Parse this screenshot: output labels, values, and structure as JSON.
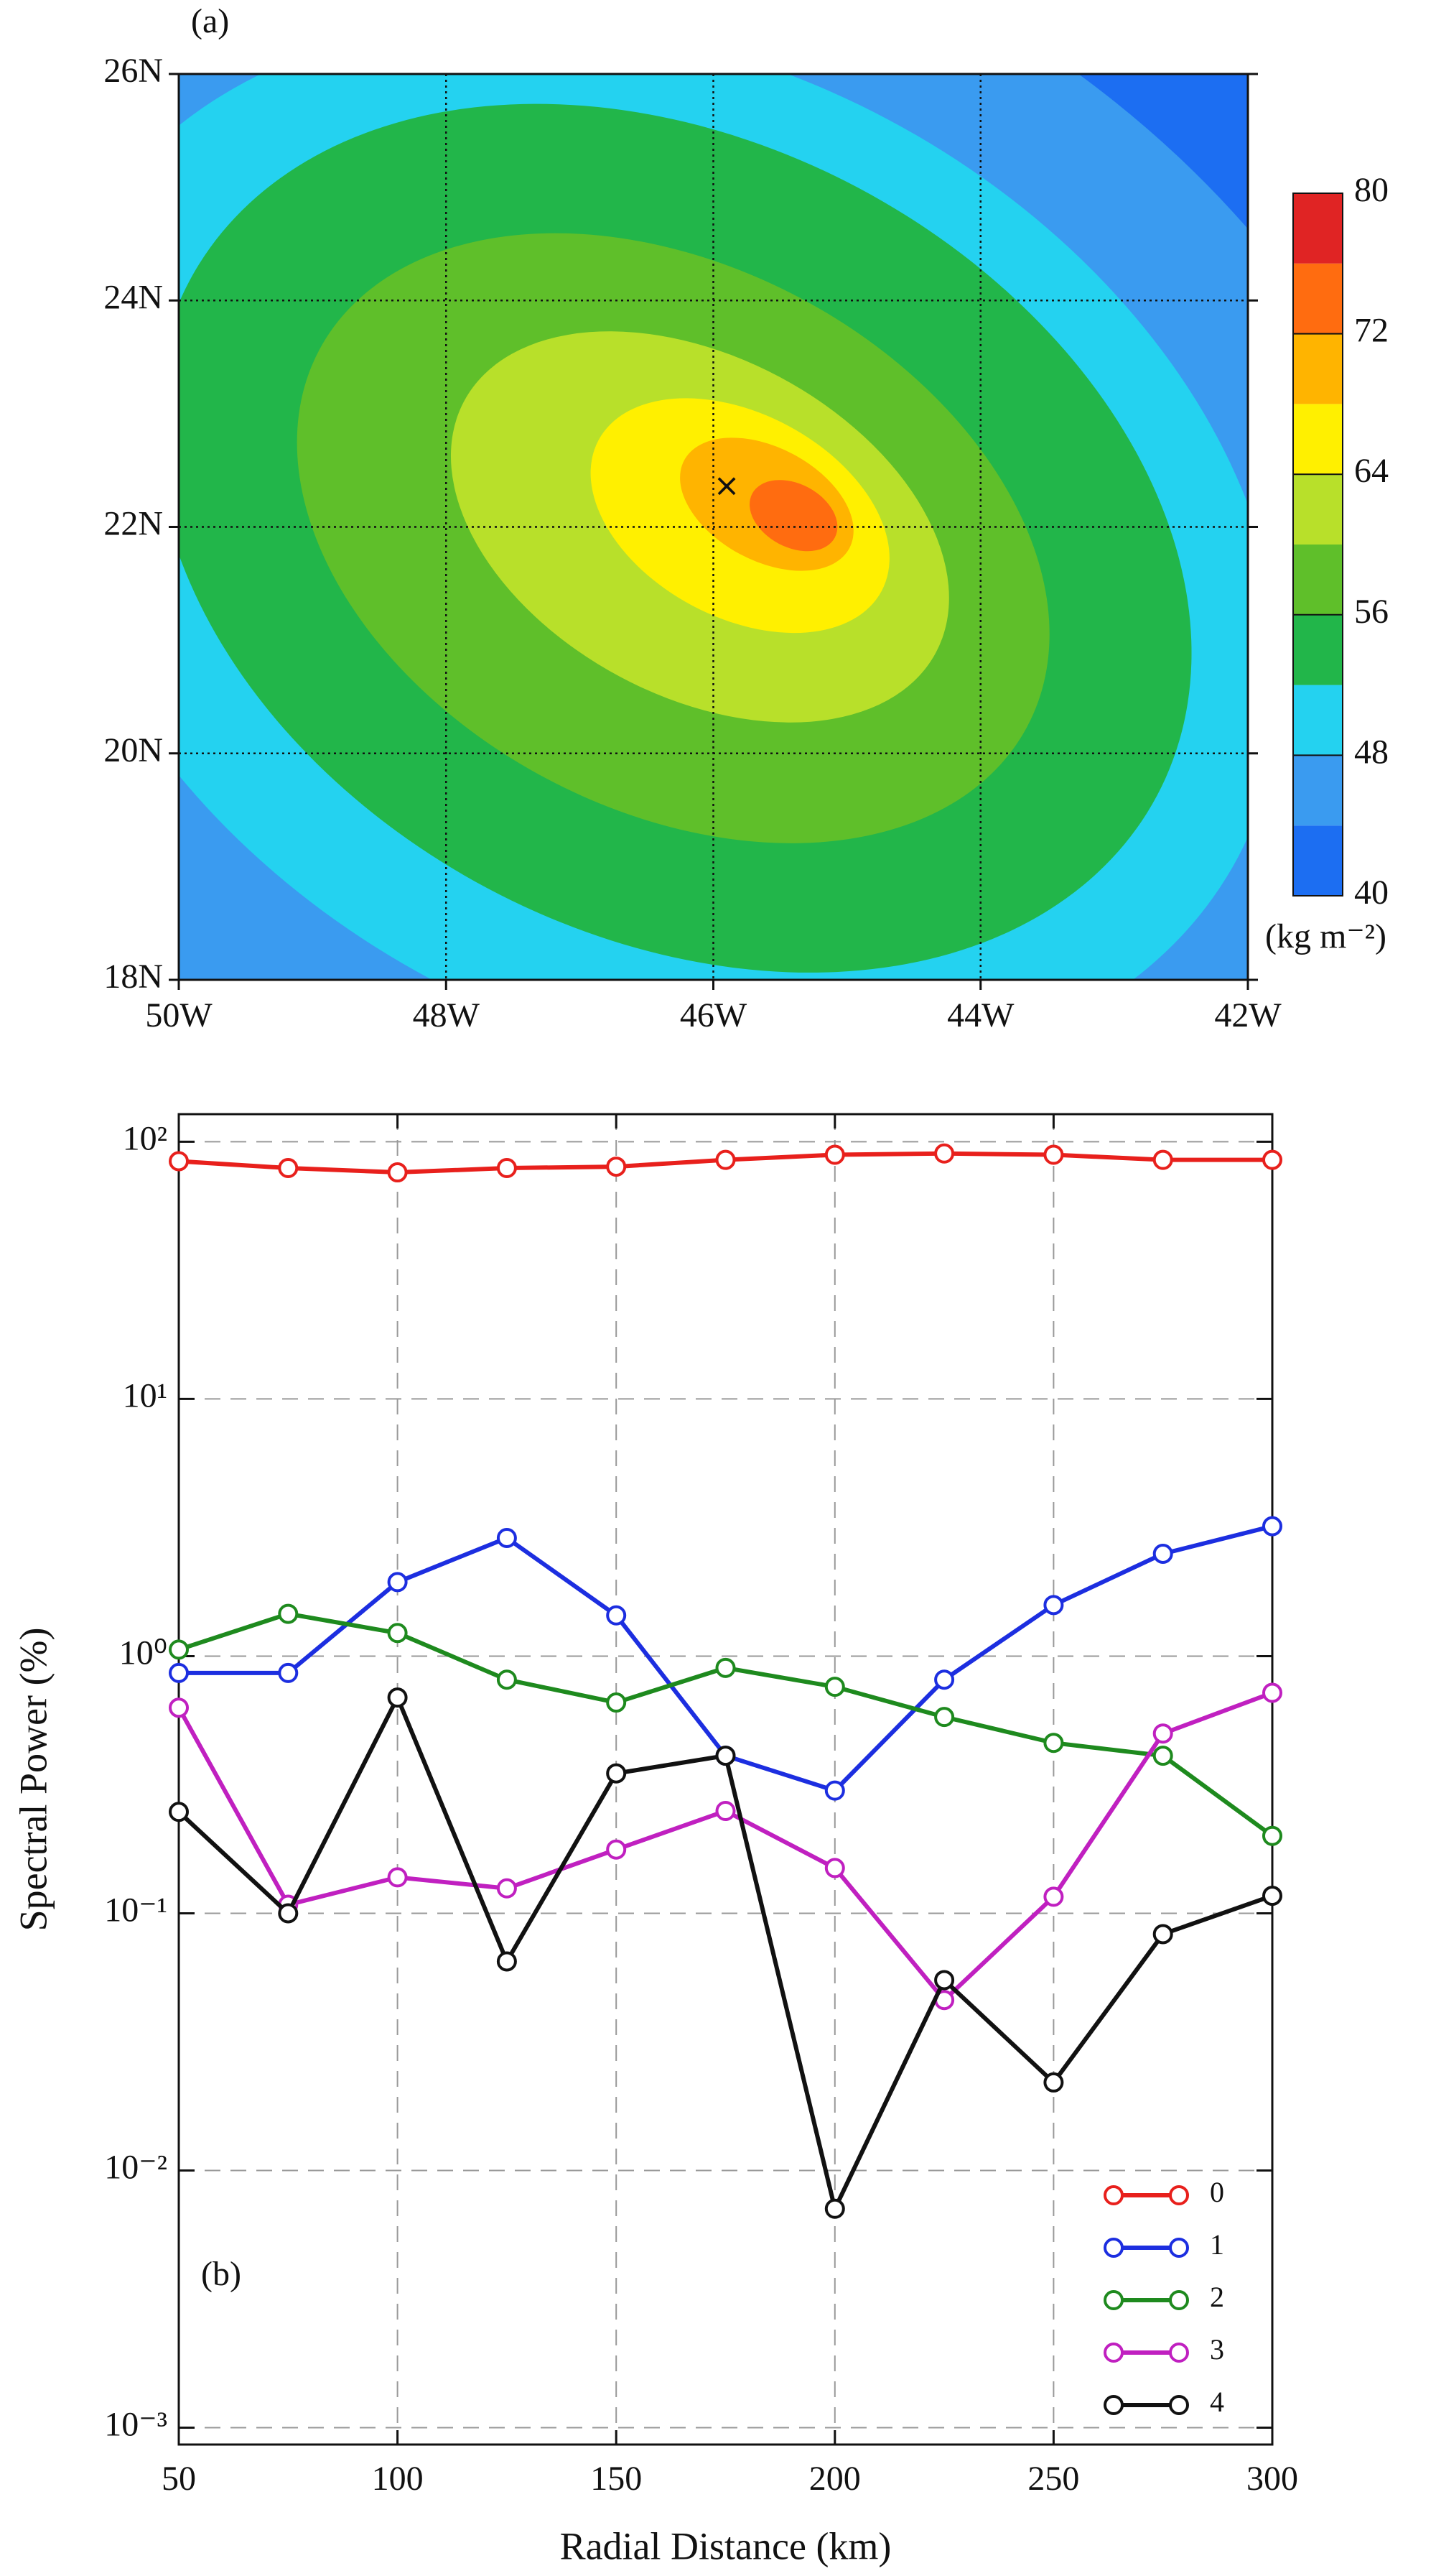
{
  "chart_data": [
    {
      "type": "contour",
      "panel_label": "(a)",
      "xlim": [
        -50,
        -42
      ],
      "ylim": [
        18,
        26
      ],
      "xticks": [
        {
          "value": -50,
          "label": "50W"
        },
        {
          "value": -48,
          "label": "48W"
        },
        {
          "value": -46,
          "label": "46W"
        },
        {
          "value": -44,
          "label": "44W"
        },
        {
          "value": -42,
          "label": "42W"
        }
      ],
      "yticks": [
        {
          "value": 18,
          "label": "18N"
        },
        {
          "value": 20,
          "label": "20N"
        },
        {
          "value": 22,
          "label": "22N"
        },
        {
          "value": 24,
          "label": "24N"
        },
        {
          "value": 26,
          "label": "26N"
        }
      ],
      "grid": true,
      "levels": [
        40,
        44,
        48,
        52,
        56,
        60,
        64,
        68,
        72,
        76,
        80
      ],
      "colors": [
        "#1c6ef2",
        "#3a9bf0",
        "#24d2f0",
        "#22b64a",
        "#5fbf2a",
        "#b8e02a",
        "#fff000",
        "#ffb400",
        "#ff6c10",
        "#e02424"
      ],
      "colorbar_ticks": [
        40,
        48,
        56,
        64,
        72,
        80
      ],
      "colorbar_label": "(kg m⁻²)",
      "marker": {
        "x": -45.9,
        "y": 22.35,
        "color": "#1a3ccc"
      }
    },
    {
      "type": "line",
      "panel_label": "(b)",
      "x_label": "Radial Distance (km)",
      "y_label": "Spectral Power (%)",
      "x": [
        50,
        75,
        100,
        125,
        150,
        175,
        200,
        225,
        250,
        275,
        300
      ],
      "xlim": [
        50,
        300
      ],
      "xticks": [
        50,
        100,
        150,
        200,
        250,
        300
      ],
      "log_scale_y": true,
      "ylim": [
        0.00086,
        128
      ],
      "yticks": [
        {
          "value": 0.001,
          "label": "10⁻³"
        },
        {
          "value": 0.01,
          "label": "10⁻²"
        },
        {
          "value": 0.1,
          "label": "10⁻¹"
        },
        {
          "value": 1,
          "label": "10⁰"
        },
        {
          "value": 10,
          "label": "10¹"
        },
        {
          "value": 100,
          "label": "10²"
        }
      ],
      "grid": true,
      "legend_position": "lower right",
      "series": [
        {
          "name": "0",
          "color": "#e8201c",
          "values": [
            84,
            79,
            76,
            79,
            80,
            85,
            89,
            90,
            89,
            85,
            85
          ]
        },
        {
          "name": "1",
          "color": "#1c2ee0",
          "values": [
            0.86,
            0.86,
            1.94,
            2.88,
            1.44,
            0.41,
            0.3,
            0.81,
            1.58,
            2.5,
            3.2
          ]
        },
        {
          "name": "2",
          "color": "#1e8a1e",
          "values": [
            1.06,
            1.46,
            1.23,
            0.81,
            0.66,
            0.9,
            0.76,
            0.58,
            0.46,
            0.41,
            0.2
          ]
        },
        {
          "name": "3",
          "color": "#c020c0",
          "values": [
            0.63,
            0.108,
            0.138,
            0.125,
            0.177,
            0.25,
            0.15,
            0.046,
            0.116,
            0.5,
            0.72
          ]
        },
        {
          "name": "4",
          "color": "#111111",
          "values": [
            0.248,
            0.1,
            0.69,
            0.065,
            0.35,
            0.41,
            0.0071,
            0.055,
            0.022,
            0.083,
            0.117
          ]
        }
      ]
    }
  ]
}
